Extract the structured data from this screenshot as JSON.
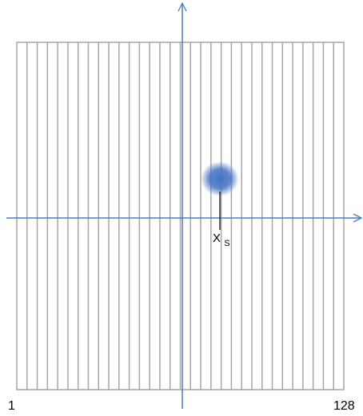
{
  "diagram": {
    "strip_count": 32,
    "grid_line_color": "#a6a6a6",
    "axis_color": "#4a7ebb",
    "spot_color": "#4472c4",
    "labels": {
      "left_index": "1",
      "right_index": "128",
      "position_main": "X",
      "position_sub": "S"
    }
  }
}
